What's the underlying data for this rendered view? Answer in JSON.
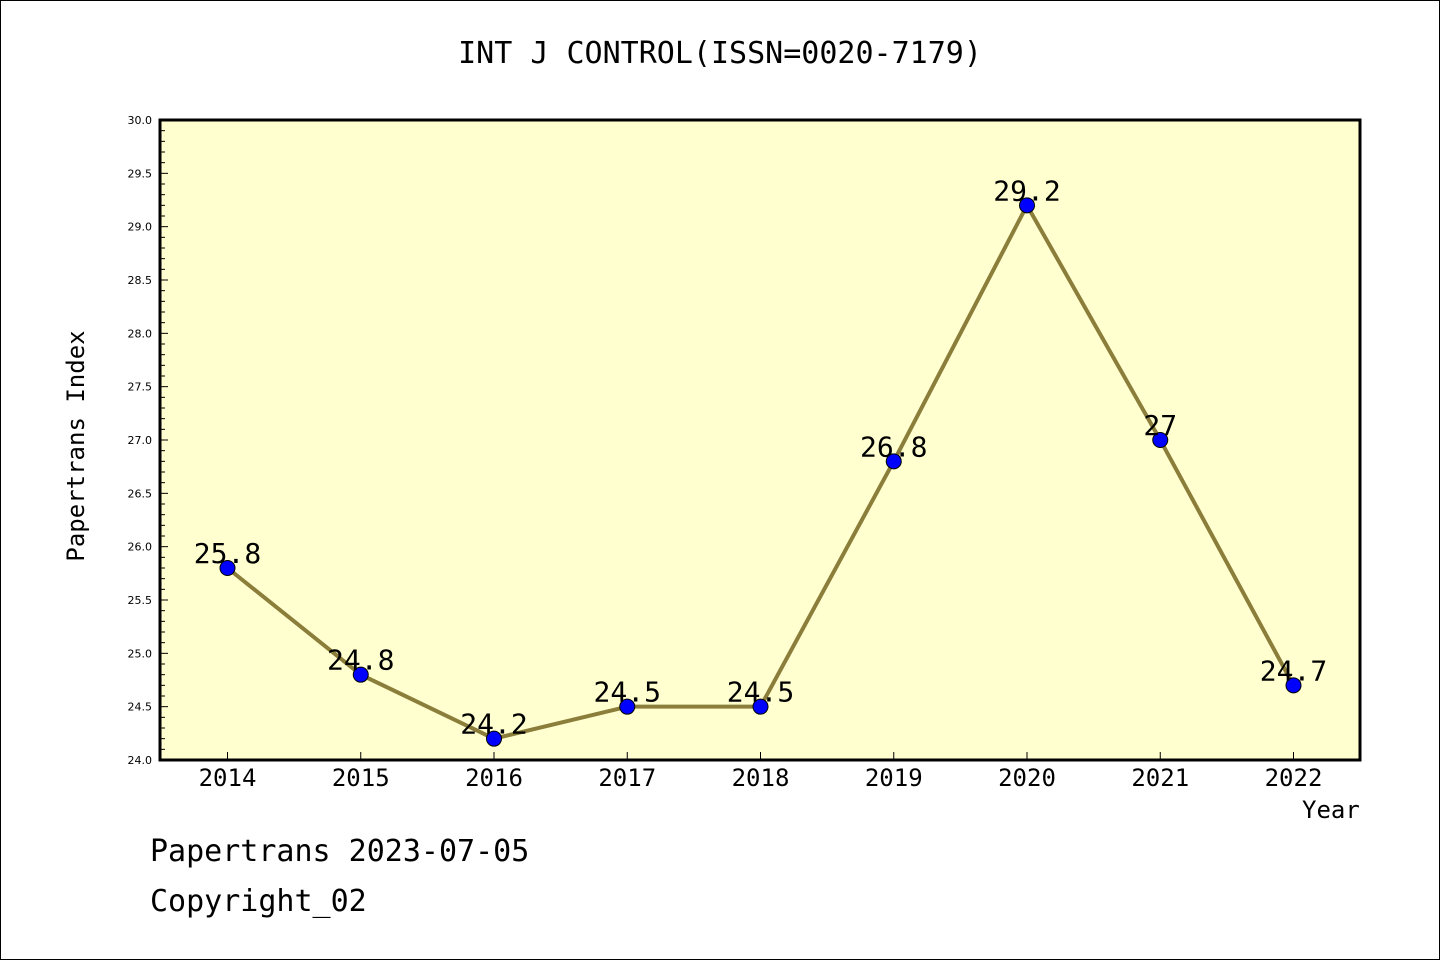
{
  "chart_data": {
    "type": "line",
    "title": "INT J CONTROL(ISSN=0020-7179)",
    "xlabel": "Year",
    "ylabel": "Papertrans Index",
    "categories": [
      "2014",
      "2015",
      "2016",
      "2017",
      "2018",
      "2019",
      "2020",
      "2021",
      "2022"
    ],
    "series": [
      {
        "values": [
          25.8,
          24.8,
          24.2,
          24.5,
          24.5,
          26.8,
          29.2,
          27,
          24.7
        ]
      }
    ],
    "data_labels": [
      "25.8",
      "24.8",
      "24.2",
      "24.5",
      "24.5",
      "26.8",
      "29.2",
      "27",
      "24.7"
    ],
    "ylim": [
      24.0,
      30.0
    ],
    "yticks": [
      "24.0",
      "24.5",
      "25.0",
      "25.5",
      "26.0",
      "26.5",
      "27.0",
      "27.5",
      "28.0",
      "28.5",
      "29.0",
      "29.5",
      "30.0"
    ],
    "grid": false,
    "legend": "none",
    "colors": {
      "plot_background": "#ffffd0",
      "line": "#8b7d3a",
      "marker": "#0000ff"
    }
  },
  "footer": {
    "line1": "Papertrans 2023-07-05",
    "line2": "Copyright_02"
  }
}
